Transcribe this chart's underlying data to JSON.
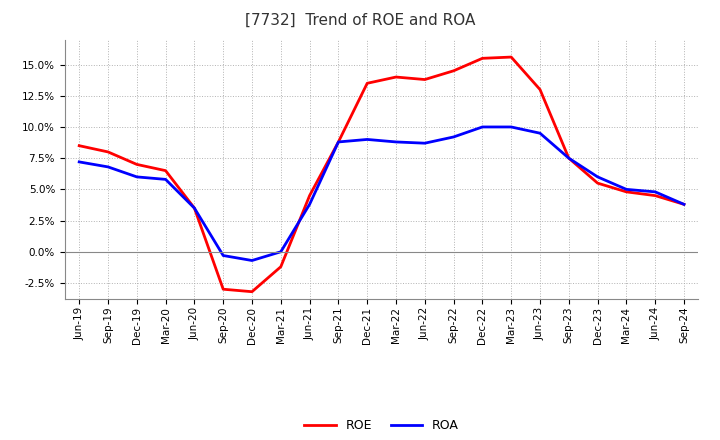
{
  "title": "[7732]  Trend of ROE and ROA",
  "title_fontsize": 11,
  "title_color": "#333333",
  "background_color": "#ffffff",
  "plot_bg_color": "#ffffff",
  "grid_color": "#aaaaaa",
  "x_labels": [
    "Jun-19",
    "Sep-19",
    "Dec-19",
    "Mar-20",
    "Jun-20",
    "Sep-20",
    "Dec-20",
    "Mar-21",
    "Jun-21",
    "Sep-21",
    "Dec-21",
    "Mar-22",
    "Jun-22",
    "Sep-22",
    "Dec-22",
    "Mar-23",
    "Jun-23",
    "Sep-23",
    "Dec-23",
    "Mar-24",
    "Jun-24",
    "Sep-24"
  ],
  "roe": [
    8.5,
    8.0,
    7.0,
    6.5,
    3.5,
    -3.0,
    -3.2,
    -1.2,
    4.5,
    8.8,
    13.5,
    14.0,
    13.8,
    14.5,
    15.5,
    15.6,
    13.0,
    7.5,
    5.5,
    4.8,
    4.5,
    3.8
  ],
  "roa": [
    7.2,
    6.8,
    6.0,
    5.8,
    3.5,
    -0.3,
    -0.7,
    0.0,
    3.8,
    8.8,
    9.0,
    8.8,
    8.7,
    9.2,
    10.0,
    10.0,
    9.5,
    7.5,
    6.0,
    5.0,
    4.8,
    3.8
  ],
  "roe_color": "#ff0000",
  "roa_color": "#0000ff",
  "ylim": [
    -3.8,
    17.0
  ],
  "yticks": [
    -2.5,
    0.0,
    2.5,
    5.0,
    7.5,
    10.0,
    12.5,
    15.0
  ],
  "line_width": 2.0,
  "tick_fontsize": 7.5,
  "legend_fontsize": 9
}
